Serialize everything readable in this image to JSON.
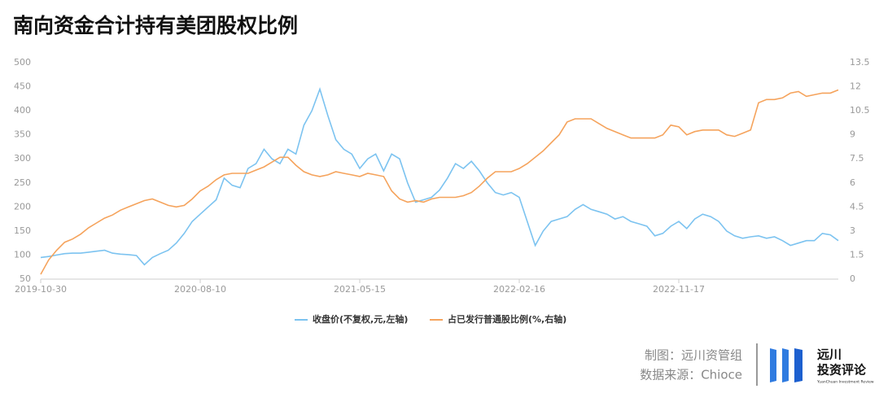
{
  "chart_data": {
    "type": "line",
    "title": "南向资金合计持有美团股权比例",
    "categories": [
      "2019-10-30",
      null,
      null,
      null,
      null,
      null,
      null,
      null,
      null,
      null,
      null,
      null,
      null,
      null,
      null,
      null,
      null,
      null,
      null,
      null,
      "2020-08-10",
      null,
      null,
      null,
      null,
      null,
      null,
      null,
      null,
      null,
      null,
      null,
      null,
      null,
      null,
      null,
      null,
      null,
      null,
      null,
      "2021-05-15",
      null,
      null,
      null,
      null,
      null,
      null,
      null,
      null,
      null,
      null,
      null,
      null,
      null,
      null,
      null,
      null,
      null,
      null,
      null,
      "2022-02-16",
      null,
      null,
      null,
      null,
      null,
      null,
      null,
      null,
      null,
      null,
      null,
      null,
      null,
      null,
      null,
      null,
      null,
      null,
      null,
      "2022-11-17",
      null,
      null,
      null,
      null,
      null,
      null,
      null,
      null,
      null,
      null,
      null,
      null,
      null,
      null,
      null,
      null,
      null,
      null,
      null,
      null
    ],
    "series": [
      {
        "name": "收盘价(不复权,元,左轴)",
        "color": "#7cc3f0",
        "axis": "y",
        "values": [
          95,
          97,
          100,
          103,
          104,
          104,
          106,
          108,
          110,
          104,
          102,
          101,
          99,
          80,
          95,
          103,
          110,
          125,
          145,
          170,
          185,
          200,
          215,
          260,
          245,
          240,
          280,
          290,
          320,
          300,
          290,
          320,
          310,
          370,
          400,
          445,
          390,
          340,
          320,
          310,
          280,
          300,
          310,
          275,
          310,
          300,
          250,
          210,
          215,
          220,
          235,
          260,
          290,
          280,
          295,
          275,
          250,
          230,
          225,
          230,
          220,
          170,
          120,
          150,
          170,
          175,
          180,
          195,
          205,
          195,
          190,
          185,
          175,
          180,
          170,
          165,
          160,
          140,
          145,
          160,
          170,
          155,
          175,
          185,
          180,
          170,
          150,
          140,
          135,
          138,
          140,
          135,
          138,
          130,
          120,
          125,
          130,
          130,
          145,
          142,
          130
        ]
      },
      {
        "name": "占已发行普通股比例(%,右轴)",
        "color": "#f5a35c",
        "axis": "y2",
        "values": [
          0.3,
          1.2,
          1.8,
          2.3,
          2.5,
          2.8,
          3.2,
          3.5,
          3.8,
          4.0,
          4.3,
          4.5,
          4.7,
          4.9,
          5.0,
          4.8,
          4.6,
          4.5,
          4.6,
          5.0,
          5.5,
          5.8,
          6.2,
          6.5,
          6.6,
          6.6,
          6.6,
          6.8,
          7.0,
          7.3,
          7.6,
          7.6,
          7.1,
          6.7,
          6.5,
          6.4,
          6.5,
          6.7,
          6.6,
          6.5,
          6.4,
          6.6,
          6.5,
          6.4,
          5.5,
          5.0,
          4.8,
          4.9,
          4.8,
          5.0,
          5.1,
          5.1,
          5.1,
          5.2,
          5.4,
          5.8,
          6.3,
          6.7,
          6.7,
          6.7,
          6.9,
          7.2,
          7.6,
          8.0,
          8.5,
          9.0,
          9.8,
          10.0,
          10.0,
          10.0,
          9.7,
          9.4,
          9.2,
          9.0,
          8.8,
          8.8,
          8.8,
          8.8,
          9.0,
          9.6,
          9.5,
          9.0,
          9.2,
          9.3,
          9.3,
          9.3,
          9.0,
          8.9,
          9.1,
          9.3,
          11.0,
          11.2,
          11.2,
          11.3,
          11.6,
          11.7,
          11.4,
          11.5,
          11.6,
          11.6,
          11.8
        ]
      }
    ],
    "ylim": [
      50,
      500
    ],
    "yticks": [
      50,
      100,
      150,
      200,
      250,
      300,
      350,
      400,
      450,
      500
    ],
    "y2lim": [
      0,
      13.5
    ],
    "y2ticks": [
      0,
      1.5,
      3,
      4.5,
      6,
      7.5,
      9,
      10.5,
      12,
      13.5
    ],
    "grid": false,
    "legend": "bottom",
    "notes": [
      "制图：远川资管组",
      "数据来源：Chioce"
    ]
  },
  "logo": {
    "name": "远川",
    "subtitle": "投资评论",
    "english": "YuanChuan Investment Review"
  }
}
